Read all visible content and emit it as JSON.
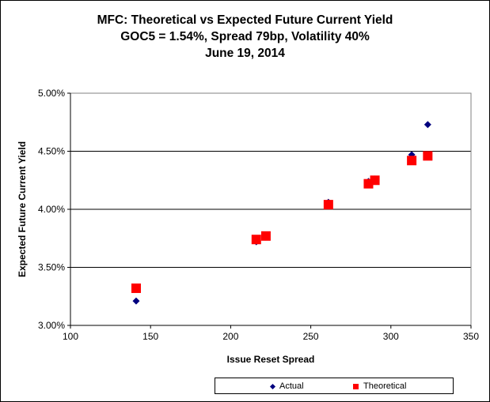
{
  "chart_data": {
    "type": "scatter",
    "title_lines": [
      "MFC: Theoretical vs Expected Future Current Yield",
      "GOC5 = 1.54%, Spread 79bp, Volatility 40%",
      "June 19, 2014"
    ],
    "xlabel": "Issue Reset Spread",
    "ylabel": "Expected Future Current Yield",
    "xlim": [
      100,
      350
    ],
    "ylim": [
      3.0,
      5.0
    ],
    "x_ticks": [
      100,
      150,
      200,
      250,
      300,
      350
    ],
    "x_tick_labels": [
      "100",
      "150",
      "200",
      "250",
      "300",
      "350"
    ],
    "y_ticks": [
      3.0,
      3.5,
      4.0,
      4.5,
      5.0
    ],
    "y_tick_labels": [
      "3.00%",
      "3.50%",
      "4.00%",
      "4.50%",
      "5.00%"
    ],
    "grid": "horizontal",
    "legend_position": "bottom-right",
    "series": [
      {
        "name": "Actual",
        "marker": "diamond",
        "color": "#00007F",
        "points": [
          {
            "x": 141,
            "y": 3.21
          },
          {
            "x": 216,
            "y": 3.72
          },
          {
            "x": 222,
            "y": 3.76
          },
          {
            "x": 261,
            "y": 4.06
          },
          {
            "x": 286,
            "y": 4.24
          },
          {
            "x": 290,
            "y": 4.26
          },
          {
            "x": 313,
            "y": 4.47
          },
          {
            "x": 323,
            "y": 4.73
          }
        ]
      },
      {
        "name": "Theoretical",
        "marker": "square",
        "color": "#FF0000",
        "points": [
          {
            "x": 141,
            "y": 3.32
          },
          {
            "x": 216,
            "y": 3.74
          },
          {
            "x": 222,
            "y": 3.77
          },
          {
            "x": 261,
            "y": 4.04
          },
          {
            "x": 286,
            "y": 4.22
          },
          {
            "x": 290,
            "y": 4.25
          },
          {
            "x": 313,
            "y": 4.42
          },
          {
            "x": 323,
            "y": 4.46
          }
        ]
      }
    ]
  }
}
